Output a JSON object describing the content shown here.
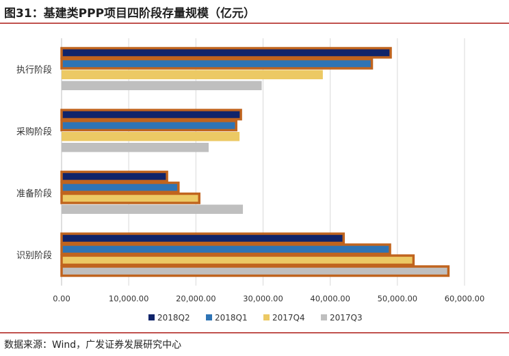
{
  "title": "图31：基建类PPP项目四阶段存量规模（亿元）",
  "source": "数据来源：Wind，广发证券发展研究中心",
  "colors": {
    "accent_rule": "#c0504d",
    "highlight_border": "#c0641e",
    "grid": "#d9d9d9"
  },
  "chart_data": {
    "type": "bar",
    "orientation": "horizontal",
    "categories": [
      "执行阶段",
      "采购阶段",
      "准备阶段",
      "识别阶段"
    ],
    "series": [
      {
        "name": "2018Q2",
        "color": "#10246a",
        "values": [
          49000,
          26700,
          15700,
          42000
        ]
      },
      {
        "name": "2018Q1",
        "color": "#2e74b5",
        "values": [
          46200,
          26000,
          17400,
          48900
        ]
      },
      {
        "name": "2017Q4",
        "color": "#ecc964",
        "values": [
          38900,
          26500,
          20500,
          52400
        ]
      },
      {
        "name": "2017Q3",
        "color": "#bfbfbf",
        "values": [
          29800,
          21900,
          27000,
          57600
        ]
      }
    ],
    "highlighted": [
      [
        true,
        true,
        false,
        false
      ],
      [
        true,
        true,
        false,
        false
      ],
      [
        true,
        true,
        true,
        false
      ],
      [
        true,
        true,
        true,
        true
      ]
    ],
    "xlim": [
      0,
      60000
    ],
    "xticks": [
      0,
      10000,
      20000,
      30000,
      40000,
      50000,
      60000
    ],
    "xtick_labels": [
      "0.00",
      "10,000.00",
      "20,000.00",
      "30,000.00",
      "40,000.00",
      "50,000.00",
      "60,000.00"
    ],
    "grid": true,
    "legend_position": "bottom",
    "xlabel": "",
    "ylabel": ""
  }
}
